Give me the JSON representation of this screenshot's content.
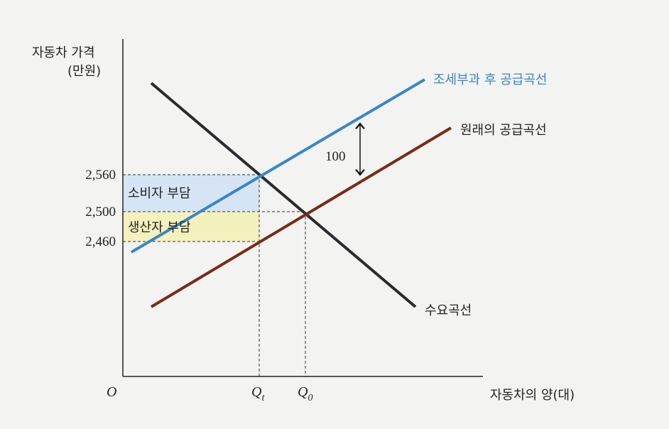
{
  "axes": {
    "y_title_line1": "자동차 가격",
    "y_title_line2": "(만원)",
    "origin": "O",
    "x_title": "자동차의 양(대)",
    "y_labels": [
      "2,560",
      "2,500",
      "2,460"
    ],
    "x_labels": [
      {
        "main": "Q",
        "sub": "t"
      },
      {
        "main": "Q",
        "sub": "0"
      }
    ]
  },
  "curves": {
    "taxed_supply": "조세부과 후 공급곡선",
    "original_supply": "원래의 공급곡선",
    "demand": "수요곡선"
  },
  "regions": {
    "consumer_burden": "소비자 부담",
    "producer_burden": "생산자 부담"
  },
  "tax_gap": "100"
}
